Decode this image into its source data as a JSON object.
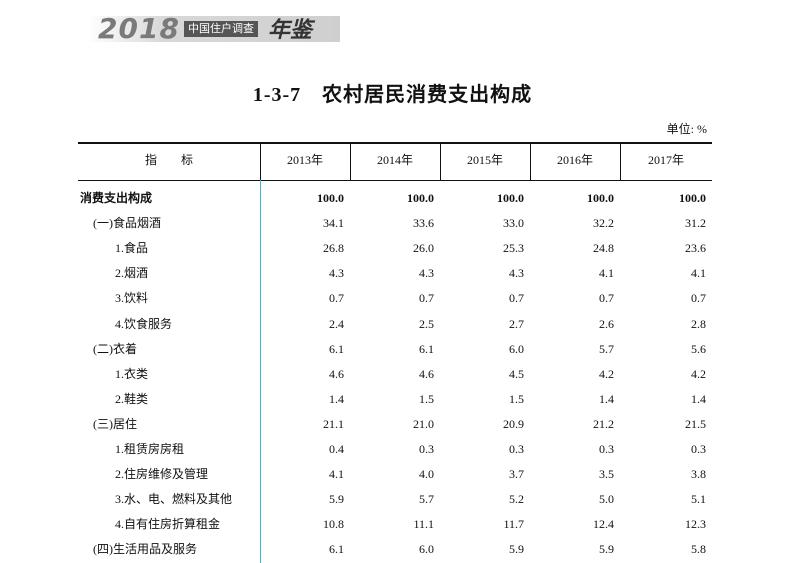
{
  "header": {
    "year": "2018",
    "subtitle": "中国住户调查",
    "yearbook": "年鉴"
  },
  "title": "1-3-7　农村居民消费支出构成",
  "unit": "单位: %",
  "table": {
    "columns": [
      "指　　标",
      "2013年",
      "2014年",
      "2015年",
      "2016年",
      "2017年"
    ],
    "rows": [
      [
        "消费支出构成",
        "100.0",
        "100.0",
        "100.0",
        "100.0",
        "100.0"
      ],
      [
        "(一)食品烟酒",
        "34.1",
        "33.6",
        "33.0",
        "32.2",
        "31.2"
      ],
      [
        "1.食品",
        "26.8",
        "26.0",
        "25.3",
        "24.8",
        "23.6"
      ],
      [
        "2.烟酒",
        "4.3",
        "4.3",
        "4.3",
        "4.1",
        "4.1"
      ],
      [
        "3.饮料",
        "0.7",
        "0.7",
        "0.7",
        "0.7",
        "0.7"
      ],
      [
        "4.饮食服务",
        "2.4",
        "2.5",
        "2.7",
        "2.6",
        "2.8"
      ],
      [
        "(二)衣着",
        "6.1",
        "6.1",
        "6.0",
        "5.7",
        "5.6"
      ],
      [
        "1.衣类",
        "4.6",
        "4.6",
        "4.5",
        "4.2",
        "4.2"
      ],
      [
        "2.鞋类",
        "1.4",
        "1.5",
        "1.5",
        "1.4",
        "1.4"
      ],
      [
        "(三)居住",
        "21.1",
        "21.0",
        "20.9",
        "21.2",
        "21.5"
      ],
      [
        "1.租赁房房租",
        "0.4",
        "0.3",
        "0.3",
        "0.3",
        "0.3"
      ],
      [
        "2.住房维修及管理",
        "4.1",
        "4.0",
        "3.7",
        "3.5",
        "3.8"
      ],
      [
        "3.水、电、燃料及其他",
        "5.9",
        "5.7",
        "5.2",
        "5.0",
        "5.1"
      ],
      [
        "4.自有住房折算租金",
        "10.8",
        "11.1",
        "11.7",
        "12.4",
        "12.3"
      ],
      [
        "(四)生活用品及服务",
        "6.1",
        "6.0",
        "5.9",
        "5.9",
        "5.8"
      ]
    ]
  }
}
